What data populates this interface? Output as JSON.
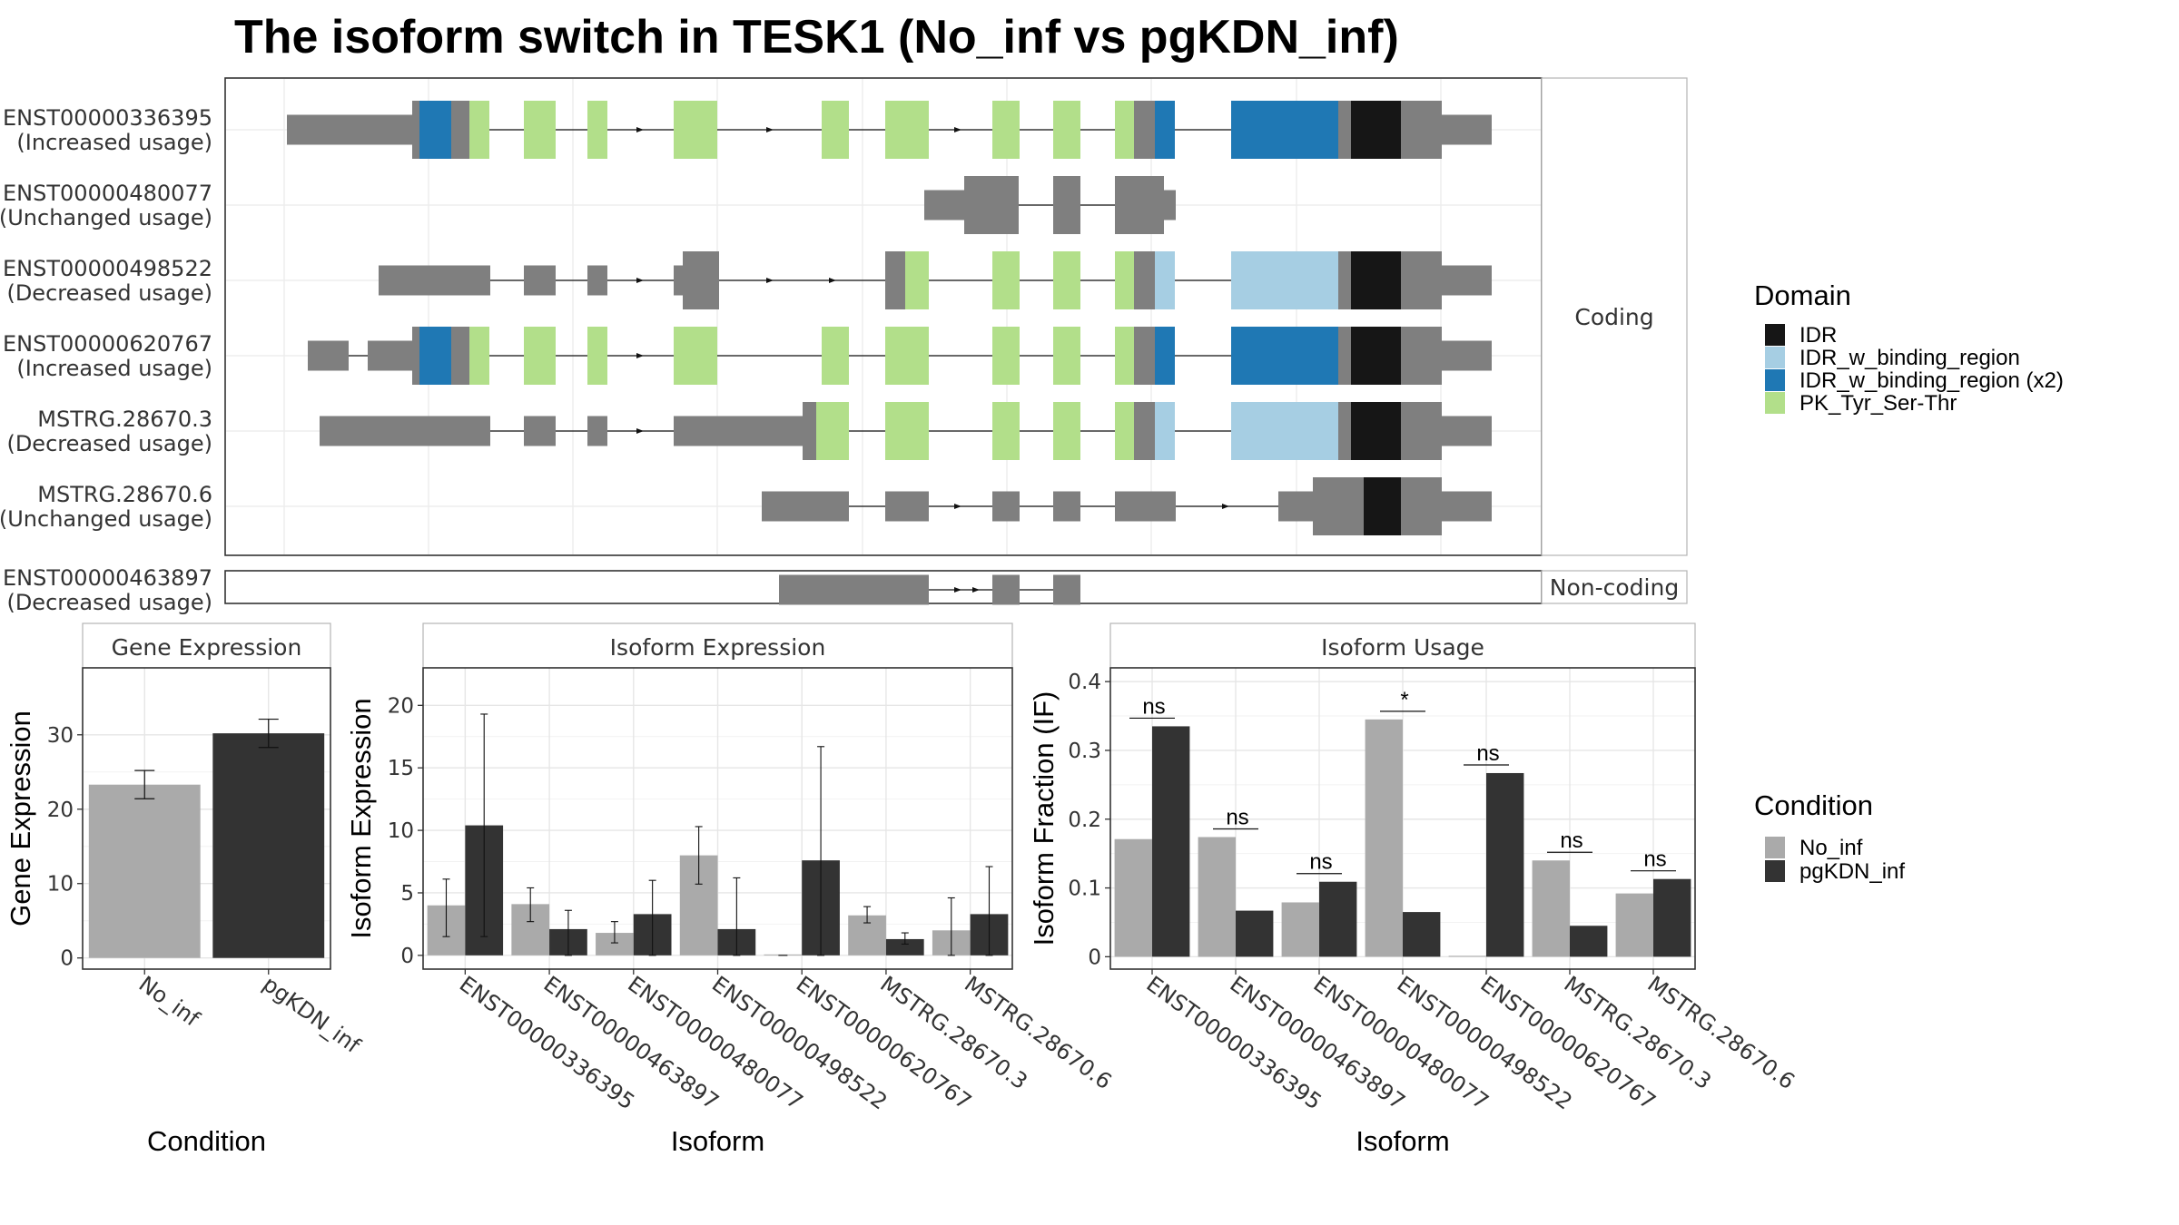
{
  "figure": {
    "title": "The isoform switch in TESK1 (No_inf vs pgKDN_inf)"
  },
  "structure_panel": {
    "coding_strip_label": "Coding",
    "noncoding_strip_label": "Non-coding",
    "transcripts": [
      {
        "id": "ENST00000336395",
        "usage": "(Increased usage)",
        "group": "coding"
      },
      {
        "id": "ENST00000480077",
        "usage": "(Unchanged usage)",
        "group": "coding"
      },
      {
        "id": "ENST00000498522",
        "usage": "(Decreased usage)",
        "group": "coding"
      },
      {
        "id": "ENST00000620767",
        "usage": "(Increased usage)",
        "group": "coding"
      },
      {
        "id": "MSTRG.28670.3",
        "usage": "(Decreased usage)",
        "group": "coding"
      },
      {
        "id": "MSTRG.28670.6",
        "usage": "(Unchanged usage)",
        "group": "coding"
      },
      {
        "id": "ENST00000463897",
        "usage": "(Decreased usage)",
        "group": "noncoding"
      }
    ]
  },
  "domain_legend": {
    "title": "Domain",
    "items": [
      {
        "label": "IDR",
        "color": "#161616"
      },
      {
        "label": "IDR_w_binding_region",
        "color": "#a6cee3"
      },
      {
        "label": "IDR_w_binding_region (x2)",
        "color": "#1f78b4"
      },
      {
        "label": "PK_Tyr_Ser-Thr",
        "color": "#b2df8a"
      }
    ]
  },
  "condition_legend": {
    "title": "Condition",
    "items": [
      {
        "label": "No_inf",
        "color": "#aaaaaa"
      },
      {
        "label": "pgKDN_inf",
        "color": "#333333"
      }
    ]
  },
  "chart_data": [
    {
      "type": "bar",
      "title": "Gene Expression",
      "xlabel": "Condition",
      "ylabel": "Gene Expression",
      "categories": [
        "No_inf",
        "pgKDN_inf"
      ],
      "values": [
        23.3,
        30.2
      ],
      "error_low": [
        21.4,
        28.3
      ],
      "error_high": [
        25.2,
        32.1
      ],
      "colors": [
        "#aaaaaa",
        "#333333"
      ],
      "ylim": [
        -1.5,
        39
      ],
      "yticks": [
        0,
        10,
        20,
        30
      ],
      "grid": true
    },
    {
      "type": "bar",
      "title": "Isoform Expression",
      "xlabel": "Isoform",
      "ylabel": "Isoform Expression",
      "categories": [
        "ENST00000336395",
        "ENST00000463897",
        "ENST00000480077",
        "ENST00000498522",
        "ENST00000620767",
        "MSTRG.28670.3",
        "MSTRG.28670.6"
      ],
      "series": [
        {
          "name": "No_inf",
          "color": "#aaaaaa",
          "values": [
            4.0,
            4.1,
            1.8,
            8.0,
            0.0,
            3.2,
            2.0
          ],
          "error_low": [
            1.5,
            2.7,
            1.0,
            5.7,
            0.0,
            2.6,
            0.0
          ],
          "error_high": [
            6.1,
            5.4,
            2.7,
            10.3,
            0.0,
            3.9,
            4.6
          ]
        },
        {
          "name": "pgKDN_inf",
          "color": "#333333",
          "values": [
            10.4,
            2.1,
            3.3,
            2.1,
            7.6,
            1.3,
            3.3
          ],
          "error_low": [
            1.5,
            0.0,
            0.0,
            0.0,
            0.0,
            0.9,
            0.0
          ],
          "error_high": [
            19.3,
            3.6,
            6.0,
            6.2,
            16.7,
            1.8,
            7.1
          ]
        }
      ],
      "ylim": [
        -1.1,
        23
      ],
      "yticks": [
        0,
        5,
        10,
        15,
        20
      ],
      "grid": true
    },
    {
      "type": "bar",
      "title": "Isoform Usage",
      "xlabel": "Isoform",
      "ylabel": "Isoform Fraction (IF)",
      "categories": [
        "ENST00000336395",
        "ENST00000463897",
        "ENST00000480077",
        "ENST00000498522",
        "ENST00000620767",
        "MSTRG.28670.3",
        "MSTRG.28670.6"
      ],
      "series": [
        {
          "name": "No_inf",
          "color": "#aaaaaa",
          "values": [
            0.171,
            0.174,
            0.079,
            0.345,
            0.0,
            0.14,
            0.092
          ]
        },
        {
          "name": "pgKDN_inf",
          "color": "#333333",
          "values": [
            0.335,
            0.067,
            0.109,
            0.065,
            0.267,
            0.045,
            0.113
          ]
        }
      ],
      "significance": [
        "ns",
        "ns",
        "ns",
        "*",
        "ns",
        "ns",
        "ns"
      ],
      "ylim": [
        -0.018,
        0.42
      ],
      "yticks": [
        0.0,
        0.1,
        0.2,
        0.3,
        0.4
      ],
      "grid": true
    }
  ]
}
